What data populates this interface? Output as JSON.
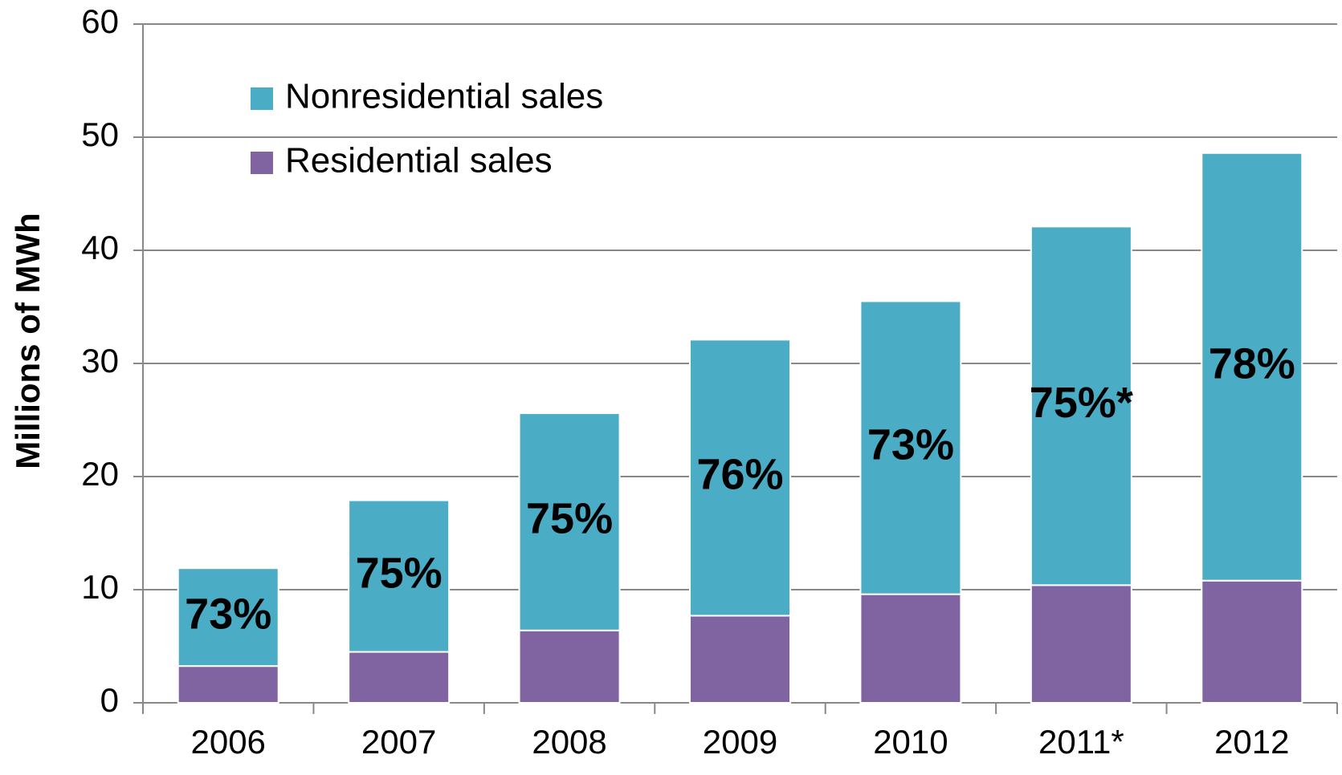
{
  "chart_data": {
    "type": "stacked_bar",
    "y_label": "Millions of MWh",
    "categories": [
      "2006",
      "2007",
      "2008",
      "2009",
      "2010",
      "2011*",
      "2012"
    ],
    "series": [
      {
        "name": "Residential sales",
        "color": "#8064a2",
        "values": [
          3.25,
          4.5,
          6.4,
          7.7,
          9.6,
          10.4,
          10.8
        ]
      },
      {
        "name": "Nonresidential sales",
        "color": "#4bacc6",
        "values": [
          8.65,
          13.4,
          19.2,
          24.4,
          25.9,
          31.7,
          37.8
        ]
      }
    ],
    "annotations": [
      "73%",
      "75%",
      "75%",
      "76%",
      "73%",
      "75%*",
      "78%"
    ],
    "ylim": [
      0,
      60
    ],
    "yticks": [
      0,
      10,
      20,
      30,
      40,
      50,
      60
    ],
    "grid": true
  }
}
